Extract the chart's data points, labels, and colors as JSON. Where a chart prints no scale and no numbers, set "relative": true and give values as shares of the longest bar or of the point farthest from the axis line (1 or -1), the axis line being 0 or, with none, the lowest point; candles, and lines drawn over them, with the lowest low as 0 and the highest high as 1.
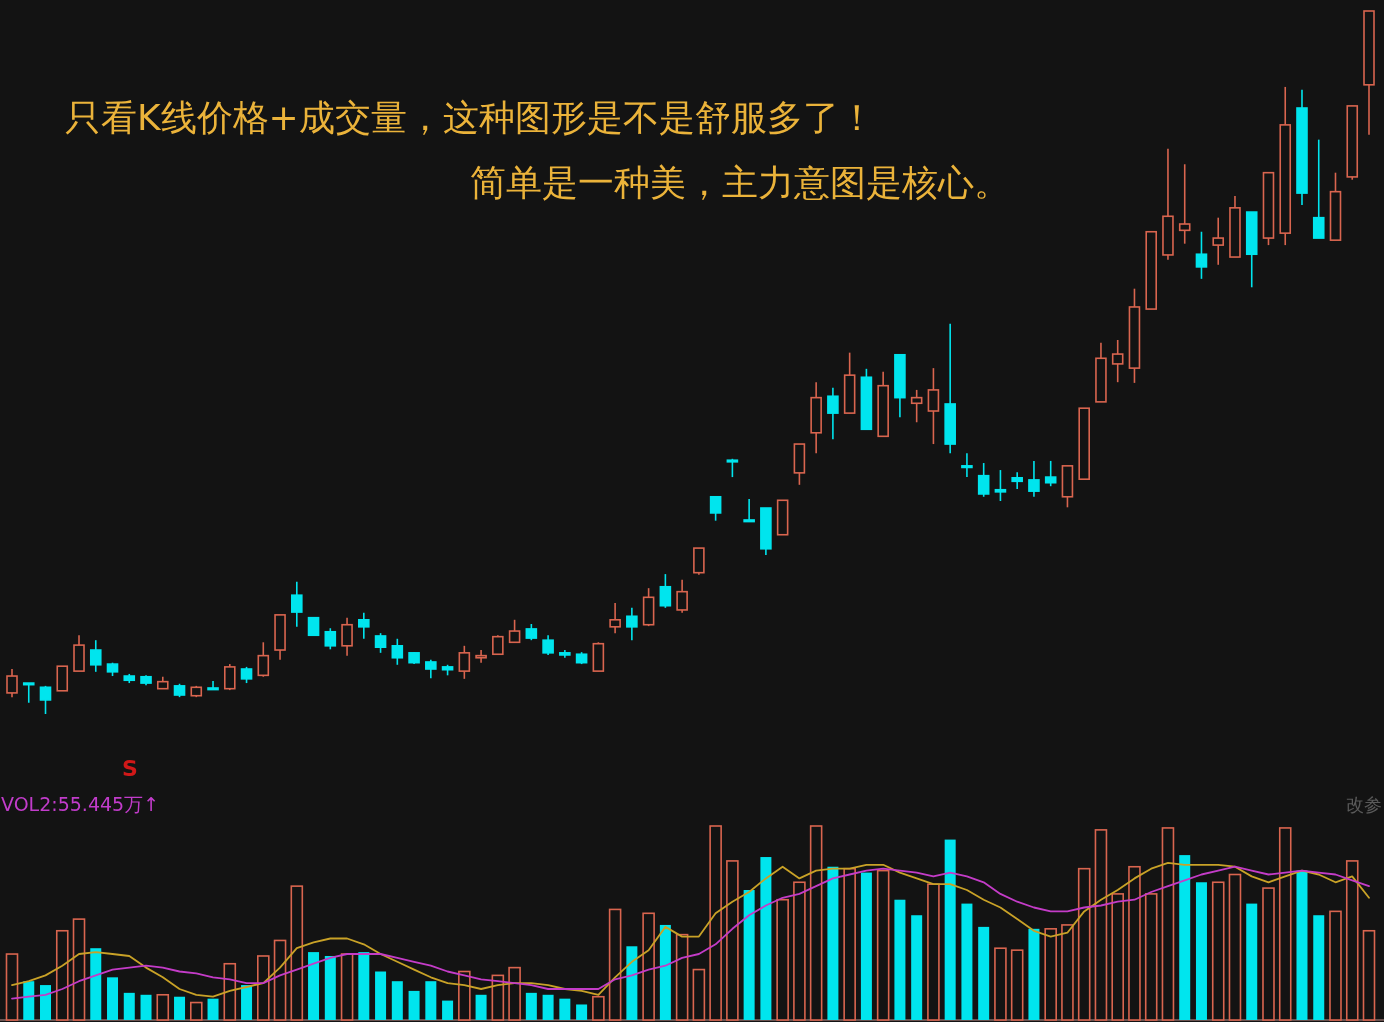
{
  "chart_data": [
    {
      "type": "candlestick",
      "relative": true,
      "categories": [
        null,
        null,
        null,
        null,
        null,
        null,
        null,
        null,
        null,
        null,
        null,
        null,
        null,
        null,
        null,
        null,
        null,
        null,
        null,
        null,
        null,
        null,
        null,
        null,
        null,
        null,
        null,
        null,
        null,
        null,
        null,
        null,
        null,
        null,
        null,
        null,
        null,
        null,
        null,
        null,
        null,
        null,
        null,
        null,
        null,
        null,
        null,
        null,
        null,
        null,
        null,
        null,
        null,
        null,
        null,
        null,
        null,
        null,
        null,
        null,
        null,
        null,
        null,
        null,
        null,
        null,
        null,
        null,
        null,
        null,
        null,
        null,
        null,
        null,
        null,
        null,
        null,
        null,
        null,
        null,
        null,
        null
      ],
      "ohlc": [
        [
          0.03,
          0.064,
          0.024,
          0.054
        ],
        [
          0.044,
          0.044,
          0.016,
          0.043
        ],
        [
          0.038,
          0.04,
          0,
          0.02
        ],
        [
          0.033,
          0.068,
          0.033,
          0.068
        ],
        [
          0.061,
          0.112,
          0.061,
          0.098
        ],
        [
          0.091,
          0.105,
          0.06,
          0.07
        ],
        [
          0.071,
          0.073,
          0.054,
          0.06
        ],
        [
          0.054,
          0.057,
          0.044,
          0.048
        ],
        [
          0.053,
          0.055,
          0.041,
          0.044
        ],
        [
          0.036,
          0.053,
          0.036,
          0.046
        ],
        [
          0.04,
          0.043,
          0.024,
          0.027
        ],
        [
          0.026,
          0.04,
          0.024,
          0.038
        ],
        [
          0.037,
          0.047,
          0.036,
          0.036
        ],
        [
          0.036,
          0.071,
          0.034,
          0.067
        ],
        [
          0.064,
          0.067,
          0.044,
          0.05
        ],
        [
          0.055,
          0.102,
          0.053,
          0.083
        ],
        [
          0.091,
          0.141,
          0.077,
          0.141
        ],
        [
          0.169,
          0.188,
          0.124,
          0.145
        ],
        [
          0.137,
          0.138,
          0.111,
          0.112
        ],
        [
          0.117,
          0.122,
          0.092,
          0.097
        ],
        [
          0.097,
          0.137,
          0.083,
          0.127
        ],
        [
          0.134,
          0.144,
          0.107,
          0.124
        ],
        [
          0.111,
          0.115,
          0.087,
          0.095
        ],
        [
          0.097,
          0.107,
          0.07,
          0.08
        ],
        [
          0.087,
          0.088,
          0.071,
          0.073
        ],
        [
          0.074,
          0.077,
          0.051,
          0.064
        ],
        [
          0.067,
          0.07,
          0.055,
          0.063
        ],
        [
          0.061,
          0.097,
          0.05,
          0.087
        ],
        [
          0.08,
          0.091,
          0.073,
          0.083
        ],
        [
          0.085,
          0.112,
          0.085,
          0.11
        ],
        [
          0.102,
          0.134,
          0.102,
          0.118
        ],
        [
          0.121,
          0.128,
          0.105,
          0.108
        ],
        [
          0.105,
          0.112,
          0.084,
          0.087
        ],
        [
          0.087,
          0.091,
          0.08,
          0.084
        ],
        [
          0.085,
          0.088,
          0.071,
          0.073
        ],
        [
          0.061,
          0.102,
          0.061,
          0.1
        ],
        [
          0.124,
          0.158,
          0.115,
          0.134
        ],
        [
          0.139,
          0.151,
          0.105,
          0.124
        ],
        [
          0.127,
          0.179,
          0.125,
          0.166
        ],
        [
          0.181,
          0.199,
          0.151,
          0.154
        ],
        [
          0.148,
          0.191,
          0.144,
          0.174
        ],
        [
          0.201,
          0.236,
          0.198,
          0.236
        ],
        [
          0.309,
          0.309,
          0.275,
          0.286
        ],
        [
          0.361,
          0.363,
          0.337,
          0.36
        ],
        [
          0.276,
          0.306,
          0.273,
          0.275
        ],
        [
          0.293,
          0.293,
          0.226,
          0.235
        ],
        [
          0.255,
          0.304,
          0.255,
          0.304
        ],
        [
          0.343,
          0.384,
          0.326,
          0.384
        ],
        [
          0.4,
          0.472,
          0.371,
          0.45
        ],
        [
          0.452,
          0.464,
          0.391,
          0.428
        ],
        [
          0.428,
          0.514,
          0.428,
          0.482
        ],
        [
          0.479,
          0.491,
          0.405,
          0.405
        ],
        [
          0.395,
          0.487,
          0.395,
          0.467
        ],
        [
          0.511,
          0.511,
          0.422,
          0.45
        ],
        [
          0.442,
          0.461,
          0.415,
          0.45
        ],
        [
          0.431,
          0.492,
          0.384,
          0.461
        ],
        [
          0.441,
          0.555,
          0.371,
          0.384
        ],
        [
          0.353,
          0.371,
          0.337,
          0.351
        ],
        [
          0.339,
          0.357,
          0.309,
          0.313
        ],
        [
          0.319,
          0.347,
          0.303,
          0.316
        ],
        [
          0.336,
          0.344,
          0.32,
          0.331
        ],
        [
          0.333,
          0.36,
          0.309,
          0.317
        ],
        [
          0.337,
          0.36,
          0.324,
          0.329
        ],
        [
          0.309,
          0.353,
          0.294,
          0.353
        ],
        [
          0.334,
          0.435,
          0.334,
          0.435
        ],
        [
          0.444,
          0.528,
          0.444,
          0.506
        ],
        [
          0.498,
          0.532,
          0.472,
          0.512
        ],
        [
          0.492,
          0.605,
          0.471,
          0.579
        ],
        [
          0.576,
          0.686,
          0.576,
          0.686
        ],
        [
          0.653,
          0.804,
          0.646,
          0.708
        ],
        [
          0.688,
          0.782,
          0.669,
          0.697
        ],
        [
          0.654,
          0.686,
          0.619,
          0.636
        ],
        [
          0.667,
          0.706,
          0.639,
          0.677
        ],
        [
          0.65,
          0.737,
          0.65,
          0.72
        ],
        [
          0.714,
          0.714,
          0.607,
          0.654
        ],
        [
          0.677,
          0.77,
          0.667,
          0.77
        ],
        [
          0.684,
          0.892,
          0.667,
          0.838
        ],
        [
          0.862,
          0.888,
          0.724,
          0.741
        ],
        [
          0.706,
          0.817,
          0.677,
          0.677
        ],
        [
          0.674,
          0.77,
          0.674,
          0.743
        ],
        [
          0.764,
          0.865,
          0.76,
          0.865
        ],
        [
          0.895,
          1,
          0.824,
          1
        ]
      ],
      "colors": [
        "#d9654f",
        "#00e5ee",
        "#00e5ee",
        "#d9654f",
        "#d9654f",
        "#00e5ee",
        "#00e5ee",
        "#00e5ee",
        "#00e5ee",
        "#d9654f",
        "#00e5ee",
        "#d9654f",
        "#00e5ee",
        "#d9654f",
        "#00e5ee",
        "#d9654f",
        "#d9654f",
        "#00e5ee",
        "#00e5ee",
        "#00e5ee",
        "#d9654f",
        "#00e5ee",
        "#00e5ee",
        "#00e5ee",
        "#00e5ee",
        "#00e5ee",
        "#00e5ee",
        "#d9654f",
        "#d9654f",
        "#d9654f",
        "#d9654f",
        "#00e5ee",
        "#00e5ee",
        "#00e5ee",
        "#00e5ee",
        "#d9654f",
        "#d9654f",
        "#00e5ee",
        "#d9654f",
        "#00e5ee",
        "#d9654f",
        "#d9654f",
        "#00e5ee",
        "#00e5ee",
        "#00e5ee",
        "#00e5ee",
        "#d9654f",
        "#d9654f",
        "#d9654f",
        "#00e5ee",
        "#d9654f",
        "#00e5ee",
        "#d9654f",
        "#00e5ee",
        "#d9654f",
        "#d9654f",
        "#00e5ee",
        "#00e5ee",
        "#00e5ee",
        "#00e5ee",
        "#00e5ee",
        "#00e5ee",
        "#00e5ee",
        "#d9654f",
        "#d9654f",
        "#d9654f",
        "#d9654f",
        "#d9654f",
        "#d9654f",
        "#d9654f",
        "#d9654f",
        "#00e5ee",
        "#d9654f",
        "#d9654f",
        "#00e5ee",
        "#d9654f",
        "#d9654f",
        "#00e5ee",
        "#00e5ee",
        "#d9654f",
        "#d9654f",
        "#d9654f"
      ],
      "annotations": [
        "只看K线价格+成交量，这种图形是不是舒服多了！",
        "简单是一种美，主力意图是核心。",
        "S"
      ]
    },
    {
      "type": "bar",
      "relative": true,
      "title": "VOL2:55.445万↑",
      "annotations": [
        "改参"
      ],
      "categories": [
        null,
        null,
        null,
        null,
        null,
        null,
        null,
        null,
        null,
        null,
        null,
        null,
        null,
        null,
        null,
        null,
        null,
        null,
        null,
        null,
        null,
        null,
        null,
        null,
        null,
        null,
        null,
        null,
        null,
        null,
        null,
        null,
        null,
        null,
        null,
        null,
        null,
        null,
        null,
        null,
        null,
        null,
        null,
        null,
        null,
        null,
        null,
        null,
        null,
        null,
        null,
        null,
        null,
        null,
        null,
        null,
        null,
        null,
        null,
        null,
        null,
        null,
        null,
        null,
        null,
        null,
        null,
        null,
        null,
        null,
        null,
        null,
        null,
        null,
        null,
        null,
        null,
        null,
        null,
        null,
        null,
        null
      ],
      "series": [
        {
          "type": "bar",
          "values": [
            0.34,
            0.2,
            0.18,
            0.46,
            0.52,
            0.37,
            0.22,
            0.14,
            0.13,
            0.13,
            0.12,
            0.09,
            0.11,
            0.29,
            0.18,
            0.33,
            0.41,
            0.69,
            0.35,
            0.33,
            0.34,
            0.35,
            0.25,
            0.2,
            0.15,
            0.2,
            0.1,
            0.25,
            0.13,
            0.23,
            0.27,
            0.14,
            0.13,
            0.11,
            0.08,
            0.12,
            0.57,
            0.38,
            0.55,
            0.49,
            0.44,
            0.26,
            1.0,
            0.82,
            0.67,
            0.84,
            0.62,
            0.71,
            1.0,
            0.79,
            0.78,
            0.76,
            0.77,
            0.62,
            0.54,
            0.7,
            0.93,
            0.6,
            0.48,
            0.37,
            0.36,
            0.47,
            0.47,
            0.49,
            0.78,
            0.98,
            0.65,
            0.79,
            0.65,
            0.99,
            0.85,
            0.71,
            0.71,
            0.75,
            0.6,
            0.68,
            0.99,
            0.77,
            0.54,
            0.56,
            0.82,
            0.46
          ],
          "colors": [
            "#d9654f",
            "#00e5ee",
            "#00e5ee",
            "#d9654f",
            "#d9654f",
            "#00e5ee",
            "#00e5ee",
            "#00e5ee",
            "#00e5ee",
            "#d9654f",
            "#00e5ee",
            "#d9654f",
            "#00e5ee",
            "#d9654f",
            "#00e5ee",
            "#d9654f",
            "#d9654f",
            "#d9654f",
            "#00e5ee",
            "#00e5ee",
            "#d9654f",
            "#00e5ee",
            "#00e5ee",
            "#00e5ee",
            "#00e5ee",
            "#00e5ee",
            "#00e5ee",
            "#d9654f",
            "#00e5ee",
            "#d9654f",
            "#d9654f",
            "#00e5ee",
            "#00e5ee",
            "#00e5ee",
            "#00e5ee",
            "#d9654f",
            "#d9654f",
            "#00e5ee",
            "#d9654f",
            "#00e5ee",
            "#d9654f",
            "#d9654f",
            "#d9654f",
            "#d9654f",
            "#00e5ee",
            "#00e5ee",
            "#d9654f",
            "#d9654f",
            "#d9654f",
            "#00e5ee",
            "#d9654f",
            "#00e5ee",
            "#d9654f",
            "#00e5ee",
            "#00e5ee",
            "#d9654f",
            "#00e5ee",
            "#00e5ee",
            "#00e5ee",
            "#d9654f",
            "#d9654f",
            "#00e5ee",
            "#d9654f",
            "#d9654f",
            "#d9654f",
            "#d9654f",
            "#d9654f",
            "#d9654f",
            "#d9654f",
            "#d9654f",
            "#00e5ee",
            "#00e5ee",
            "#d9654f",
            "#d9654f",
            "#00e5ee",
            "#d9654f",
            "#d9654f",
            "#00e5ee",
            "#00e5ee",
            "#d9654f",
            "#d9654f",
            "#d9654f"
          ]
        },
        {
          "type": "line",
          "color": "#c9a227",
          "values": [
            0.18,
            0.2,
            0.23,
            0.28,
            0.34,
            0.35,
            0.34,
            0.33,
            0.27,
            0.22,
            0.16,
            0.13,
            0.12,
            0.15,
            0.17,
            0.19,
            0.27,
            0.37,
            0.4,
            0.42,
            0.42,
            0.39,
            0.34,
            0.3,
            0.26,
            0.22,
            0.19,
            0.18,
            0.16,
            0.18,
            0.19,
            0.19,
            0.18,
            0.16,
            0.15,
            0.13,
            0.22,
            0.3,
            0.36,
            0.48,
            0.43,
            0.43,
            0.55,
            0.61,
            0.66,
            0.73,
            0.79,
            0.73,
            0.77,
            0.78,
            0.78,
            0.8,
            0.8,
            0.76,
            0.73,
            0.7,
            0.7,
            0.67,
            0.62,
            0.58,
            0.52,
            0.46,
            0.43,
            0.45,
            0.56,
            0.62,
            0.67,
            0.73,
            0.78,
            0.81,
            0.8,
            0.8,
            0.8,
            0.79,
            0.74,
            0.71,
            0.74,
            0.77,
            0.75,
            0.71,
            0.74,
            0.63
          ]
        },
        {
          "type": "line",
          "color": "#c43cc8",
          "values": [
            0.11,
            0.12,
            0.13,
            0.16,
            0.2,
            0.23,
            0.26,
            0.27,
            0.28,
            0.27,
            0.25,
            0.24,
            0.22,
            0.21,
            0.19,
            0.19,
            0.23,
            0.26,
            0.29,
            0.32,
            0.34,
            0.34,
            0.34,
            0.32,
            0.3,
            0.28,
            0.25,
            0.23,
            0.21,
            0.2,
            0.19,
            0.18,
            0.16,
            0.16,
            0.16,
            0.16,
            0.21,
            0.23,
            0.26,
            0.28,
            0.32,
            0.34,
            0.39,
            0.47,
            0.54,
            0.59,
            0.63,
            0.65,
            0.69,
            0.73,
            0.75,
            0.77,
            0.78,
            0.77,
            0.76,
            0.74,
            0.76,
            0.74,
            0.71,
            0.65,
            0.61,
            0.58,
            0.56,
            0.56,
            0.58,
            0.59,
            0.61,
            0.62,
            0.66,
            0.69,
            0.72,
            0.75,
            0.77,
            0.79,
            0.77,
            0.75,
            0.76,
            0.77,
            0.76,
            0.75,
            0.72,
            0.69
          ]
        }
      ]
    }
  ]
}
